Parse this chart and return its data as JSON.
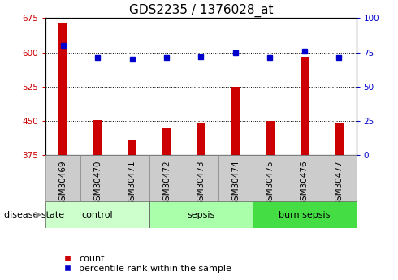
{
  "title": "GDS2235 / 1376028_at",
  "samples": [
    "GSM30469",
    "GSM30470",
    "GSM30471",
    "GSM30472",
    "GSM30473",
    "GSM30474",
    "GSM30475",
    "GSM30476",
    "GSM30477"
  ],
  "counts": [
    665,
    453,
    410,
    435,
    447,
    525,
    450,
    590,
    445
  ],
  "percentiles": [
    80,
    71,
    70,
    71,
    72,
    75,
    71,
    76,
    71
  ],
  "left_ylim": [
    375,
    675
  ],
  "left_yticks": [
    375,
    450,
    525,
    600,
    675
  ],
  "right_ylim": [
    0,
    100
  ],
  "right_yticks": [
    0,
    25,
    50,
    75,
    100
  ],
  "bar_color": "#cc0000",
  "dot_color": "#0000cc",
  "groups": [
    {
      "label": "control",
      "start": 0,
      "end": 3,
      "color": "#ccffcc"
    },
    {
      "label": "sepsis",
      "start": 3,
      "end": 6,
      "color": "#aaffaa"
    },
    {
      "label": "burn sepsis",
      "start": 6,
      "end": 9,
      "color": "#44dd44"
    }
  ],
  "group_label": "disease state",
  "legend_count_label": "count",
  "legend_pct_label": "percentile rank within the sample",
  "bar_width": 0.25,
  "title_fontsize": 11,
  "tick_fontsize": 7.5,
  "label_fontsize": 8,
  "grid_color": "#000000",
  "sample_box_color": "#cccccc",
  "plot_bg_color": "#ffffff"
}
